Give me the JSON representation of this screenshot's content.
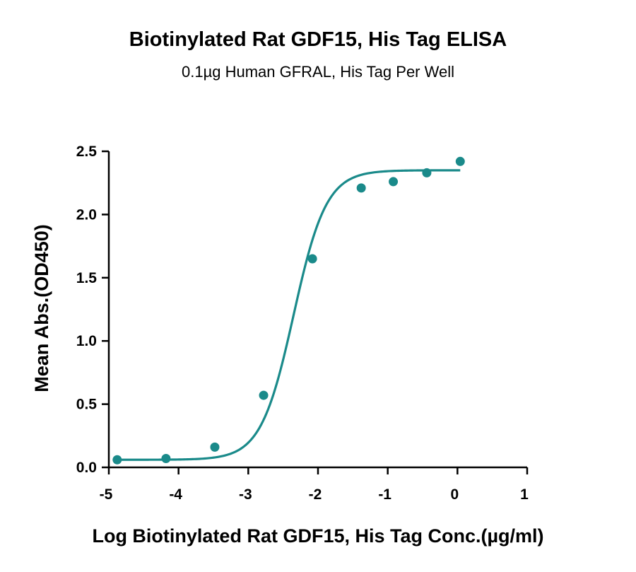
{
  "chart_data": {
    "type": "scatter",
    "title": "Biotinylated Rat GDF15, His Tag ELISA",
    "subtitle": "0.1µg Human GFRAL, His Tag Per Well",
    "xlabel": "Log Biotinylated Rat GDF15, His Tag Conc.(µg/ml)",
    "ylabel": "Mean Abs.(OD450)",
    "xlim": [
      -5,
      1
    ],
    "ylim": [
      0,
      2.5
    ],
    "xticks": [
      "-5",
      "-4",
      "-3",
      "-2",
      "-1",
      "0",
      "1"
    ],
    "yticks": [
      "0.0",
      "0.5",
      "1.0",
      "1.5",
      "2.0",
      "2.5"
    ],
    "grid": false,
    "color": "#1a8a8a",
    "points": {
      "x": [
        -4.88,
        -4.18,
        -3.48,
        -2.78,
        -2.08,
        -1.38,
        -0.92,
        -0.44,
        0.04
      ],
      "y": [
        0.06,
        0.07,
        0.16,
        0.57,
        1.65,
        2.21,
        2.26,
        2.33,
        2.42
      ]
    },
    "fit": {
      "model": "4PL",
      "bottom": 0.06,
      "top": 2.35,
      "log_ec50": -2.35,
      "hill": 1.85,
      "x_range": [
        -4.88,
        0.04
      ]
    }
  }
}
